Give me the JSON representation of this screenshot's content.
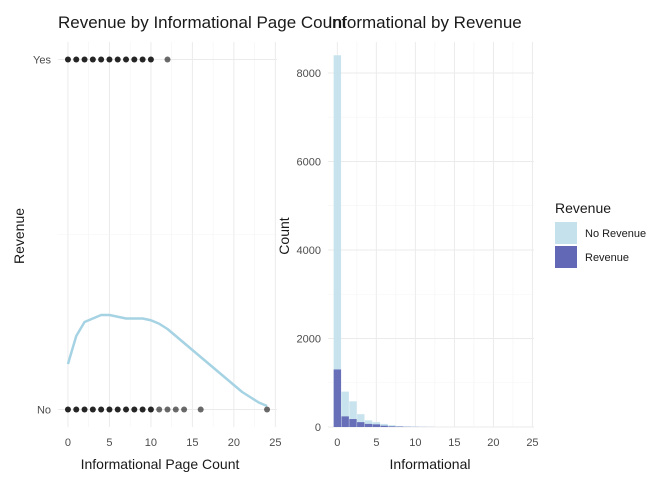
{
  "left": {
    "title": "Revenue by Informational Page Count",
    "xlabel": "Informational Page Count",
    "ylabel": "Revenue",
    "x_ticks": [
      "0",
      "5",
      "10",
      "15",
      "20",
      "25"
    ],
    "y_ticks": [
      "No",
      "Yes"
    ]
  },
  "right": {
    "title": "Informational by Revenue",
    "xlabel": "Informational",
    "ylabel": "Count",
    "x_ticks": [
      "0",
      "5",
      "10",
      "15",
      "20",
      "25"
    ],
    "y_ticks": [
      "0",
      "2000",
      "4000",
      "6000",
      "8000"
    ]
  },
  "legend": {
    "title": "Revenue",
    "items": [
      {
        "label": "No Revenue",
        "color": "#c5e1ec"
      },
      {
        "label": "Revenue",
        "color": "#6368b6"
      }
    ]
  },
  "chart_data": [
    {
      "type": "scatter",
      "title": "Revenue by Informational Page Count",
      "xlabel": "Informational Page Count",
      "ylabel": "Revenue",
      "xlim": [
        -1.2,
        25.2
      ],
      "categories": [
        "No",
        "Yes"
      ],
      "series": [
        {
          "name": "No",
          "x": [
            0,
            1,
            2,
            3,
            4,
            5,
            6,
            7,
            8,
            9,
            10,
            11,
            12,
            13,
            14,
            16,
            24
          ]
        },
        {
          "name": "Yes",
          "x": [
            0,
            1,
            2,
            3,
            4,
            5,
            6,
            7,
            8,
            9,
            10,
            12
          ]
        }
      ],
      "smooth_curve": {
        "color": "#a6d3e3",
        "x": [
          0,
          1,
          2,
          3,
          4,
          5,
          6,
          7,
          8,
          9,
          10,
          11,
          12,
          13,
          14,
          15,
          16,
          17,
          18,
          19,
          20,
          21,
          22,
          23,
          24
        ],
        "y": [
          0.13,
          0.21,
          0.25,
          0.26,
          0.27,
          0.27,
          0.265,
          0.26,
          0.26,
          0.26,
          0.255,
          0.245,
          0.23,
          0.21,
          0.19,
          0.17,
          0.15,
          0.13,
          0.11,
          0.09,
          0.07,
          0.05,
          0.035,
          0.02,
          0.01
        ]
      },
      "ylim": [
        -0.05,
        1.05
      ],
      "grid": true
    },
    {
      "type": "bar",
      "title": "Informational by Revenue",
      "xlabel": "Informational",
      "ylabel": "Count",
      "xlim": [
        -1.2,
        25.2
      ],
      "ylim": [
        0,
        8700
      ],
      "x": [
        0,
        1,
        2,
        3,
        4,
        5,
        6,
        7,
        8,
        9,
        10,
        11,
        12
      ],
      "series": [
        {
          "name": "No Revenue",
          "values": [
            8400,
            800,
            580,
            290,
            150,
            110,
            70,
            40,
            20,
            12,
            8,
            4,
            3
          ]
        },
        {
          "name": "Revenue",
          "values": [
            1300,
            240,
            180,
            110,
            70,
            60,
            30,
            15,
            10,
            5,
            3,
            2,
            1
          ]
        }
      ],
      "grid": true,
      "legend": "right"
    }
  ]
}
